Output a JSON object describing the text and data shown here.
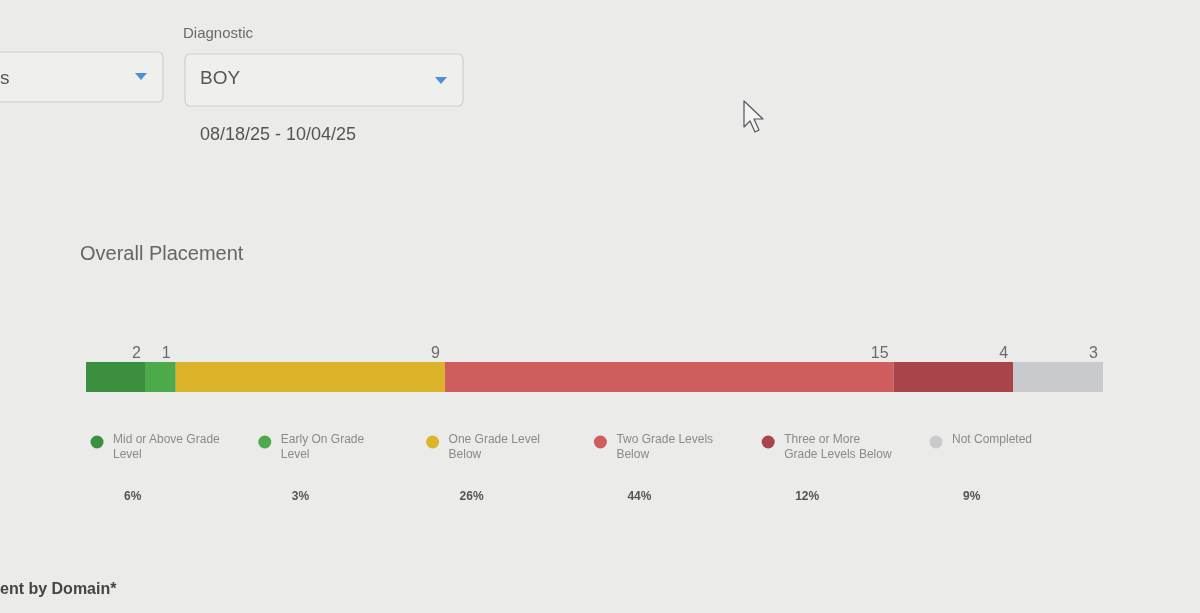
{
  "chart_data": {
    "type": "bar",
    "orientation": "horizontal",
    "stacked": true,
    "title": "Overall Placement",
    "categories": [
      null
    ],
    "data_labels": true,
    "legend": "bottom",
    "series": [
      {
        "name": "Mid or Above Grade Level",
        "color": "#3d8f40",
        "values": [
          2
        ]
      },
      {
        "name": "Early On Grade Level",
        "color": "#4caa4a",
        "values": [
          1
        ]
      },
      {
        "name": "One Grade Level Below",
        "color": "#dcb42c",
        "values": [
          9
        ]
      },
      {
        "name": "Two Grade Levels Below",
        "color": "#d05d5e",
        "values": [
          15
        ]
      },
      {
        "name": "Three or More Grade Levels Below",
        "color": "#a9444b",
        "values": [
          4
        ]
      },
      {
        "name": "Not Completed",
        "color": "#c9cacd",
        "values": [
          3
        ]
      }
    ],
    "annotations": [
      "6%",
      "3%",
      "26%",
      "44%",
      "12%",
      "9%",
      "Diagnostic",
      "BOY",
      "s",
      "08/18/25 - 10/04/25",
      "ent by Domain*"
    ]
  }
}
